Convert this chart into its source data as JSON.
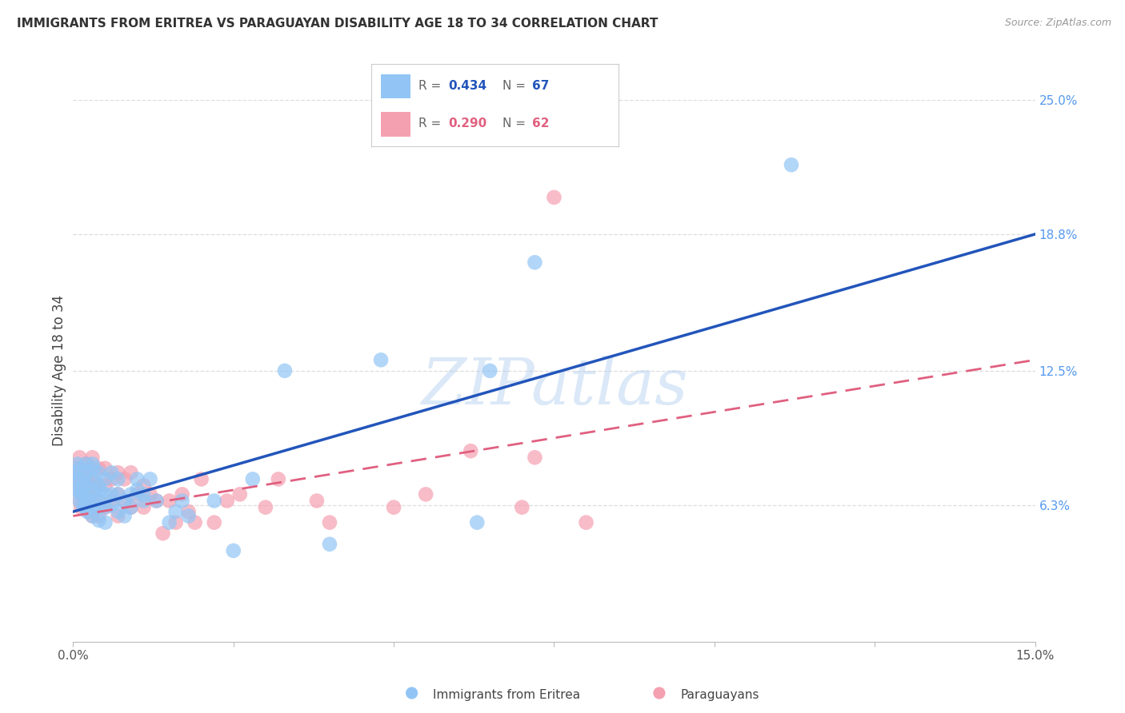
{
  "title": "IMMIGRANTS FROM ERITREA VS PARAGUAYAN DISABILITY AGE 18 TO 34 CORRELATION CHART",
  "source": "Source: ZipAtlas.com",
  "ylabel": "Disability Age 18 to 34",
  "xlim": [
    0.0,
    0.15
  ],
  "ylim": [
    0.0,
    0.25
  ],
  "r_eritrea": 0.434,
  "n_eritrea": 67,
  "r_paraguayan": 0.29,
  "n_paraguayan": 62,
  "color_eritrea": "#92C5F5",
  "color_paraguayan": "#F5A0B0",
  "color_line_eritrea": "#2255BB",
  "color_line_paraguayan": "#E06080",
  "legend_label_eritrea": "Immigrants from Eritrea",
  "legend_label_paraguayan": "Paraguayans",
  "watermark": "ZIPatlas",
  "background_color": "#FFFFFF",
  "grid_color": "#DDDDDD",
  "right_ytick_vals": [
    0.063,
    0.125,
    0.188,
    0.25
  ],
  "right_ytick_labels": [
    "6.3%",
    "12.5%",
    "18.8%",
    "25.0%"
  ],
  "line_eritrea_y0": 0.06,
  "line_eritrea_y1": 0.188,
  "line_paraguayan_y0": 0.058,
  "line_paraguayan_y1": 0.13,
  "eritrea_x": [
    0.0003,
    0.0005,
    0.0005,
    0.0007,
    0.001,
    0.001,
    0.001,
    0.001,
    0.0012,
    0.0015,
    0.0015,
    0.0018,
    0.002,
    0.002,
    0.002,
    0.002,
    0.002,
    0.002,
    0.0022,
    0.0025,
    0.003,
    0.003,
    0.003,
    0.003,
    0.003,
    0.003,
    0.0032,
    0.004,
    0.004,
    0.004,
    0.004,
    0.004,
    0.0042,
    0.005,
    0.005,
    0.005,
    0.005,
    0.006,
    0.006,
    0.006,
    0.007,
    0.007,
    0.007,
    0.008,
    0.008,
    0.009,
    0.009,
    0.01,
    0.01,
    0.011,
    0.011,
    0.012,
    0.013,
    0.015,
    0.016,
    0.017,
    0.018,
    0.022,
    0.025,
    0.028,
    0.033,
    0.04,
    0.048,
    0.065,
    0.072,
    0.063,
    0.112
  ],
  "eritrea_y": [
    0.078,
    0.07,
    0.075,
    0.082,
    0.065,
    0.07,
    0.075,
    0.08,
    0.068,
    0.063,
    0.07,
    0.075,
    0.062,
    0.065,
    0.068,
    0.072,
    0.078,
    0.082,
    0.06,
    0.065,
    0.058,
    0.062,
    0.065,
    0.07,
    0.075,
    0.082,
    0.08,
    0.056,
    0.062,
    0.065,
    0.072,
    0.078,
    0.07,
    0.055,
    0.062,
    0.068,
    0.075,
    0.063,
    0.068,
    0.078,
    0.06,
    0.068,
    0.075,
    0.058,
    0.065,
    0.062,
    0.068,
    0.07,
    0.075,
    0.065,
    0.068,
    0.075,
    0.065,
    0.055,
    0.06,
    0.065,
    0.058,
    0.065,
    0.042,
    0.075,
    0.125,
    0.045,
    0.13,
    0.125,
    0.175,
    0.055,
    0.22
  ],
  "paraguayan_x": [
    0.0003,
    0.0005,
    0.0007,
    0.001,
    0.001,
    0.001,
    0.001,
    0.0012,
    0.0015,
    0.002,
    0.002,
    0.002,
    0.002,
    0.0022,
    0.0025,
    0.003,
    0.003,
    0.003,
    0.003,
    0.0035,
    0.004,
    0.004,
    0.004,
    0.004,
    0.005,
    0.005,
    0.005,
    0.006,
    0.006,
    0.007,
    0.007,
    0.007,
    0.008,
    0.008,
    0.009,
    0.009,
    0.01,
    0.011,
    0.011,
    0.012,
    0.013,
    0.014,
    0.015,
    0.016,
    0.017,
    0.018,
    0.019,
    0.02,
    0.022,
    0.024,
    0.026,
    0.03,
    0.032,
    0.038,
    0.04,
    0.05,
    0.055,
    0.062,
    0.07,
    0.072,
    0.075,
    0.08
  ],
  "paraguayan_y": [
    0.075,
    0.08,
    0.07,
    0.065,
    0.072,
    0.078,
    0.085,
    0.062,
    0.068,
    0.062,
    0.068,
    0.075,
    0.082,
    0.08,
    0.06,
    0.058,
    0.065,
    0.075,
    0.085,
    0.072,
    0.058,
    0.065,
    0.072,
    0.08,
    0.062,
    0.072,
    0.08,
    0.065,
    0.075,
    0.058,
    0.068,
    0.078,
    0.065,
    0.075,
    0.062,
    0.078,
    0.068,
    0.062,
    0.072,
    0.068,
    0.065,
    0.05,
    0.065,
    0.055,
    0.068,
    0.06,
    0.055,
    0.075,
    0.055,
    0.065,
    0.068,
    0.062,
    0.075,
    0.065,
    0.055,
    0.062,
    0.068,
    0.088,
    0.062,
    0.085,
    0.205,
    0.055
  ]
}
